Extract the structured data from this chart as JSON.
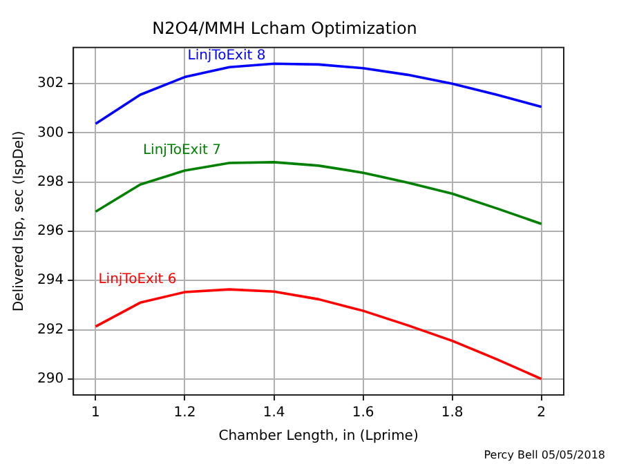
{
  "chart_data": {
    "type": "line",
    "title": "N2O4/MMH Lcham Optimization",
    "xlabel": "Chamber Length, in (Lprime)",
    "ylabel": "Delivered Isp, sec (IspDel)",
    "x": [
      1,
      1.1,
      1.2,
      1.3,
      1.4,
      1.5,
      1.6,
      1.7,
      1.8,
      1.9,
      2
    ],
    "series": [
      {
        "name": "LinjToExit 8",
        "color": "#0000ff",
        "values": [
          300.37,
          301.55,
          302.27,
          302.67,
          302.81,
          302.78,
          302.63,
          302.36,
          302.0,
          301.55,
          301.06
        ]
      },
      {
        "name": "LinjToExit 7",
        "color": "#008000",
        "values": [
          296.8,
          297.9,
          298.47,
          298.78,
          298.81,
          298.67,
          298.38,
          297.98,
          297.53,
          296.93,
          296.3
        ]
      },
      {
        "name": "LinjToExit 6",
        "color": "#ff0000",
        "values": [
          292.13,
          293.1,
          293.53,
          293.64,
          293.55,
          293.24,
          292.77,
          292.18,
          291.55,
          290.8,
          290.0
        ]
      }
    ],
    "xlim": [
      0.95,
      2.05
    ],
    "xticks": [
      1,
      1.2,
      1.4,
      1.6,
      1.8,
      2
    ],
    "ylim": [
      289.35,
      303.47
    ],
    "yticks": [
      290,
      292,
      294,
      296,
      298,
      300,
      302
    ],
    "grid": true,
    "legend": false,
    "annotations": [
      "Percy Bell 05/05/2018"
    ]
  }
}
